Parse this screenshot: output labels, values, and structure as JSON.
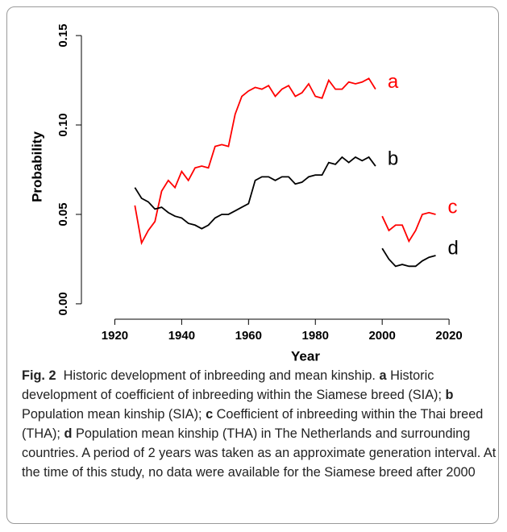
{
  "chart_data": {
    "type": "line",
    "xlabel": "Year",
    "ylabel": "Probability",
    "xlim": [
      1910,
      2033
    ],
    "ylim": [
      -0.0086,
      0.1613
    ],
    "xticks": [
      1920,
      1940,
      1960,
      1980,
      2000,
      2020
    ],
    "yticks": [
      {
        "value": 0,
        "label": "0.00"
      },
      {
        "value": 0.05,
        "label": "0.05"
      },
      {
        "value": 0.1,
        "label": "0.10"
      },
      {
        "value": 0.15,
        "label": "0.15"
      }
    ],
    "series": [
      {
        "name": "a",
        "color": "#ff0000",
        "x": [
          1926,
          1928,
          1930,
          1932,
          1934,
          1936,
          1938,
          1940,
          1942,
          1944,
          1946,
          1948,
          1950,
          1952,
          1954,
          1956,
          1958,
          1960,
          1962,
          1964,
          1966,
          1968,
          1970,
          1972,
          1974,
          1976,
          1978,
          1980,
          1982,
          1984,
          1986,
          1988,
          1990,
          1992,
          1994,
          1996,
          1998
        ],
        "values": [
          0.055,
          0.034,
          0.041,
          0.046,
          0.063,
          0.069,
          0.065,
          0.074,
          0.069,
          0.076,
          0.077,
          0.076,
          0.088,
          0.089,
          0.088,
          0.106,
          0.116,
          0.119,
          0.121,
          0.12,
          0.122,
          0.116,
          0.12,
          0.122,
          0.116,
          0.118,
          0.123,
          0.116,
          0.115,
          0.125,
          0.12,
          0.12,
          0.124,
          0.123,
          0.124,
          0.126,
          0.12
        ]
      },
      {
        "name": "b",
        "color": "#000000",
        "x": [
          1926,
          1928,
          1930,
          1932,
          1934,
          1936,
          1938,
          1940,
          1942,
          1944,
          1946,
          1948,
          1950,
          1952,
          1954,
          1956,
          1958,
          1960,
          1962,
          1964,
          1966,
          1968,
          1970,
          1972,
          1974,
          1976,
          1978,
          1980,
          1982,
          1984,
          1986,
          1988,
          1990,
          1992,
          1994,
          1996,
          1998
        ],
        "values": [
          0.065,
          0.059,
          0.057,
          0.053,
          0.054,
          0.051,
          0.049,
          0.048,
          0.045,
          0.044,
          0.042,
          0.044,
          0.048,
          0.05,
          0.05,
          0.052,
          0.054,
          0.056,
          0.069,
          0.071,
          0.071,
          0.069,
          0.071,
          0.071,
          0.067,
          0.068,
          0.071,
          0.072,
          0.072,
          0.079,
          0.078,
          0.082,
          0.079,
          0.082,
          0.08,
          0.082,
          0.077
        ]
      },
      {
        "name": "c",
        "color": "#ff0000",
        "x": [
          2000,
          2002,
          2004,
          2006,
          2008,
          2010,
          2012,
          2014,
          2016
        ],
        "values": [
          0.049,
          0.041,
          0.044,
          0.044,
          0.035,
          0.041,
          0.05,
          0.051,
          0.05
        ]
      },
      {
        "name": "d",
        "color": "#000000",
        "x": [
          2000,
          2002,
          2004,
          2006,
          2008,
          2010,
          2012,
          2014,
          2016
        ],
        "values": [
          0.031,
          0.025,
          0.021,
          0.022,
          0.021,
          0.021,
          0.024,
          0.026,
          0.027
        ]
      }
    ]
  },
  "caption": {
    "label": "Fig. 2",
    "title": "Historic development of inbreeding and mean kinship.",
    "items": [
      {
        "key": "a",
        "text": "Historic development of coefficient of inbreeding within the Siamese breed (SIA);"
      },
      {
        "key": "b",
        "text": "Population mean kinship (SIA);"
      },
      {
        "key": "c",
        "text": "Coefficient of inbreeding within the Thai breed (THA);"
      },
      {
        "key": "d",
        "text": "Population mean kinship (THA) in The Netherlands and surrounding countries."
      }
    ],
    "note": "A period of 2 years was taken as an approximate generation interval. At the time of this study, no data were available for the Siamese breed after 2000"
  }
}
